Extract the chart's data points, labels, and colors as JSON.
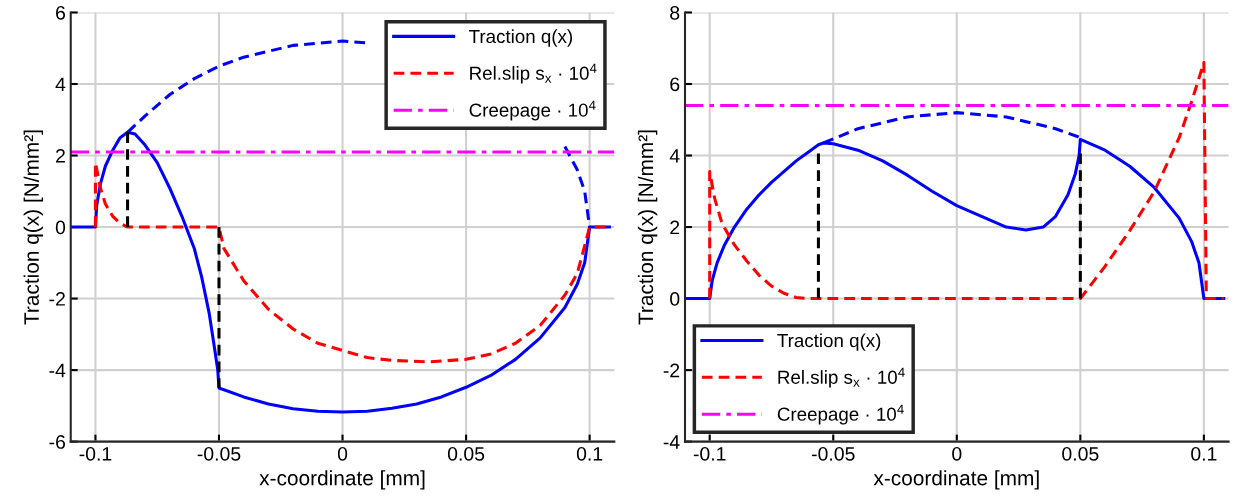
{
  "chart_data": [
    {
      "type": "line",
      "xlabel": "x-coordinate [mm]",
      "ylabel": "Traction q(x) [N/mm²]",
      "xlim": [
        -0.11,
        0.11
      ],
      "ylim": [
        -6,
        6
      ],
      "xticks": [
        -0.1,
        -0.05,
        0,
        0.05,
        0.1
      ],
      "yticks": [
        -6,
        -4,
        -2,
        0,
        2,
        4,
        6
      ],
      "grid": true,
      "legend": "top right",
      "series": [
        {
          "name": "Traction q(x)",
          "color": "#0000ff",
          "line_style": "solid",
          "x": [
            -0.11,
            -0.1,
            -0.0995,
            -0.098,
            -0.096,
            -0.093,
            -0.09,
            -0.087,
            -0.084,
            -0.08,
            -0.075,
            -0.07,
            -0.065,
            -0.06,
            -0.057,
            -0.054,
            -0.052,
            -0.0505,
            -0.05,
            -0.04,
            -0.03,
            -0.02,
            -0.01,
            0,
            0.01,
            0.02,
            0.03,
            0.04,
            0.05,
            0.06,
            0.07,
            0.08,
            0.09,
            0.095,
            0.098,
            0.1,
            0.108
          ],
          "values": [
            0,
            0,
            0.6,
            1.2,
            1.7,
            2.15,
            2.5,
            2.65,
            2.6,
            2.3,
            1.8,
            1.1,
            0.3,
            -0.6,
            -1.4,
            -2.4,
            -3.3,
            -4.0,
            -4.5,
            -4.75,
            -4.95,
            -5.08,
            -5.15,
            -5.17,
            -5.15,
            -5.07,
            -4.95,
            -4.75,
            -4.48,
            -4.15,
            -3.7,
            -3.1,
            -2.25,
            -1.6,
            -1.0,
            0,
            0
          ]
        },
        {
          "color": "#0000ff",
          "line_style": "dashed",
          "x": [
            -0.087,
            -0.08,
            -0.07,
            -0.06,
            -0.05,
            -0.04,
            -0.02,
            0,
            0.01,
            0.02,
            0.04,
            0.06,
            0.07,
            0.08,
            0.09,
            0.095,
            0.098,
            0.1
          ],
          "values": [
            2.65,
            3.1,
            3.7,
            4.15,
            4.5,
            4.75,
            5.08,
            5.2,
            5.15,
            null,
            null,
            null,
            null,
            null,
            2.25,
            1.6,
            1.0,
            0
          ]
        },
        {
          "name": "Rel.slip s$_{x}$ · 10$^{4}$",
          "color": "#ff0000",
          "line_style": "dashed",
          "x": [
            -0.1,
            -0.1,
            -0.098,
            -0.096,
            -0.093,
            -0.09,
            -0.087,
            -0.05,
            -0.048,
            -0.04,
            -0.03,
            -0.02,
            -0.01,
            0,
            0.01,
            0.02,
            0.035,
            0.05,
            0.06,
            0.07,
            0.08,
            0.09,
            0.095,
            0.1,
            0.107
          ],
          "values": [
            0,
            1.8,
            1.1,
            0.65,
            0.3,
            0.1,
            0,
            0,
            -0.6,
            -1.5,
            -2.3,
            -2.85,
            -3.25,
            -3.45,
            -3.65,
            -3.73,
            -3.77,
            -3.7,
            -3.55,
            -3.25,
            -2.75,
            -1.9,
            -1.3,
            0,
            0
          ]
        },
        {
          "name": "Creepage · 10$^{4}$",
          "color": "#ff00ff",
          "line_style": "dashdot",
          "x": [
            -0.11,
            0.11
          ],
          "values": [
            2.1,
            2.1
          ]
        },
        {
          "color": "#000000",
          "line_style": "dashed",
          "x": [
            -0.087,
            -0.087
          ],
          "values": [
            0,
            2.65
          ]
        },
        {
          "color": "#000000",
          "line_style": "dashed",
          "x": [
            -0.05,
            -0.05
          ],
          "values": [
            0,
            -4.5
          ]
        }
      ]
    },
    {
      "type": "line",
      "xlabel": "x-coordinate [mm]",
      "ylabel": "Traction q(x) [N/mm²]",
      "xlim": [
        -0.11,
        0.11
      ],
      "ylim": [
        -4,
        8
      ],
      "xticks": [
        -0.1,
        -0.05,
        0,
        0.05,
        0.1
      ],
      "yticks": [
        -4,
        -2,
        0,
        2,
        4,
        6,
        8
      ],
      "grid": true,
      "legend": "bottom left",
      "series": [
        {
          "name": "Traction q(x)",
          "color": "#0000ff",
          "line_style": "solid",
          "x": [
            -0.11,
            -0.1,
            -0.099,
            -0.097,
            -0.094,
            -0.09,
            -0.085,
            -0.08,
            -0.075,
            -0.07,
            -0.065,
            -0.06,
            -0.056,
            -0.054,
            -0.05,
            -0.04,
            -0.03,
            -0.02,
            -0.01,
            0,
            0.01,
            0.02,
            0.028,
            0.035,
            0.04,
            0.045,
            0.048,
            0.0495,
            0.05,
            0.06,
            0.07,
            0.08,
            0.09,
            0.095,
            0.098,
            0.1,
            0.108
          ],
          "values": [
            0,
            0,
            0.5,
            1.0,
            1.5,
            2.0,
            2.5,
            2.9,
            3.25,
            3.55,
            3.85,
            4.1,
            4.3,
            4.35,
            4.33,
            4.15,
            3.85,
            3.45,
            3.0,
            2.6,
            2.3,
            2.0,
            1.92,
            2.0,
            2.3,
            2.9,
            3.5,
            4.0,
            4.45,
            4.15,
            3.7,
            3.1,
            2.25,
            1.6,
            1.0,
            0,
            0
          ]
        },
        {
          "color": "#0000ff",
          "line_style": "dashed",
          "x": [
            -0.054,
            -0.04,
            -0.02,
            0,
            0.02,
            0.04,
            0.05
          ],
          "values": [
            4.35,
            4.75,
            5.08,
            5.2,
            5.08,
            4.75,
            4.5
          ]
        },
        {
          "name": "Rel.slip s$_{x}$ · 10$^{4}$",
          "color": "#ff0000",
          "line_style": "dashed",
          "x": [
            -0.1,
            -0.1,
            -0.098,
            -0.095,
            -0.09,
            -0.085,
            -0.08,
            -0.075,
            -0.07,
            -0.065,
            -0.06,
            0.05,
            0.06,
            0.07,
            0.08,
            0.09,
            0.095,
            0.1,
            0.101,
            0.108
          ],
          "values": [
            0,
            3.55,
            2.8,
            2.1,
            1.5,
            1.05,
            0.65,
            0.35,
            0.15,
            0.03,
            0,
            0,
            0.9,
            1.9,
            3.0,
            4.5,
            5.5,
            6.6,
            0,
            0
          ]
        },
        {
          "name": "Creepage · 10$^{4}$",
          "color": "#ff00ff",
          "line_style": "dashdot",
          "x": [
            -0.11,
            0.11
          ],
          "values": [
            5.4,
            5.4
          ]
        },
        {
          "color": "#000000",
          "line_style": "dashed",
          "x": [
            -0.056,
            -0.056
          ],
          "values": [
            0,
            4.1
          ]
        },
        {
          "color": "#000000",
          "line_style": "dashed",
          "x": [
            0.05,
            0.05
          ],
          "values": [
            0,
            4.1
          ]
        }
      ]
    }
  ]
}
